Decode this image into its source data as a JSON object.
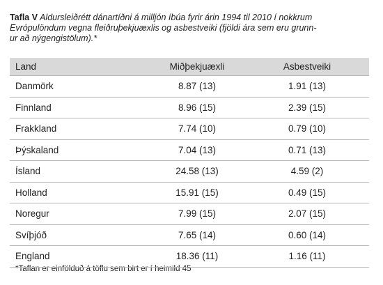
{
  "caption": {
    "label": "Tafla V",
    "lines": [
      "Aldursleiðrétt dánartíðni á milljón íbúa fyrir árin 1994 til 2010 í nokkrum",
      "Evrópulöndum vegna fleiðruþekjuæxlis og asbestveiki (fjöldi ára sem eru grunn-",
      "ur að nýgengistölum).*"
    ]
  },
  "table": {
    "header": [
      "Land",
      "Miðþekjuæxli",
      "Asbestveiki"
    ],
    "rows": [
      [
        "Danmörk",
        "8.87 (13)",
        "1.91 (13)"
      ],
      [
        "Finnland",
        "8.96 (15)",
        "2.39 (15)"
      ],
      [
        "Frakkland",
        "7.74 (10)",
        "0.79 (10)"
      ],
      [
        "Þýskaland",
        "7.04 (13)",
        "0.71 (13)"
      ],
      [
        "Ísland",
        "24.58 (13)",
        "4.59 (2)"
      ],
      [
        "Holland",
        "15.91 (15)",
        "0.49 (15)"
      ],
      [
        "Noregur",
        "7.99 (15)",
        "2.07 (15)"
      ],
      [
        "Svíþjóð",
        "7.65 (14)",
        "0.60 (14)"
      ],
      [
        "England",
        "18.36 (11)",
        "1.16 (11)"
      ]
    ]
  },
  "footnote": "*Taflan er einfölduð á töflu sem birt er í heimild 45"
}
